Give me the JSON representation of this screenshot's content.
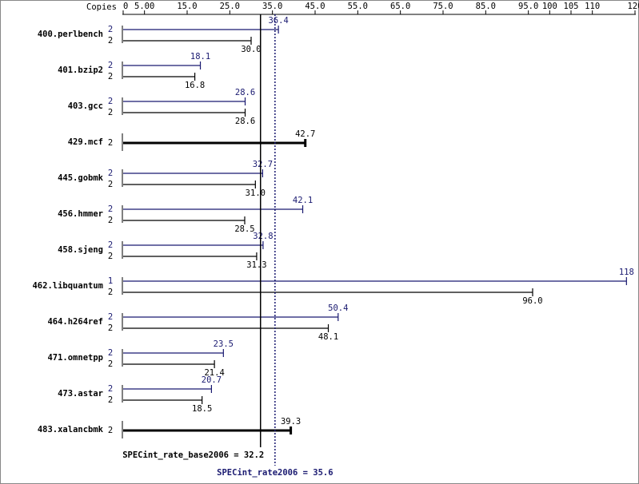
{
  "chart_data": {
    "type": "bar",
    "orientation": "horizontal",
    "copies_header": "Copies",
    "categories": [
      "400.perlbench",
      "401.bzip2",
      "403.gcc",
      "429.mcf",
      "445.gobmk",
      "456.hmmer",
      "458.sjeng",
      "462.libquantum",
      "464.h264ref",
      "471.omnetpp",
      "473.astar",
      "483.xalancbmk"
    ],
    "series": [
      {
        "color": "#191970",
        "copies": [
          2,
          2,
          2,
          null,
          2,
          2,
          2,
          1,
          2,
          2,
          2,
          null
        ],
        "values": [
          36.4,
          18.1,
          28.6,
          null,
          32.7,
          42.1,
          32.8,
          118,
          50.4,
          23.5,
          20.7,
          null
        ],
        "value_labels": [
          "36.4",
          "18.1",
          "28.6",
          null,
          "32.7",
          "42.1",
          "32.8",
          "118",
          "50.4",
          "23.5",
          "20.7",
          null
        ]
      },
      {
        "color": "#000000",
        "copies": [
          2,
          2,
          2,
          2,
          2,
          2,
          2,
          2,
          2,
          2,
          2,
          2
        ],
        "values": [
          30.0,
          16.8,
          28.6,
          42.7,
          31.0,
          28.5,
          31.3,
          96.0,
          48.1,
          21.4,
          18.5,
          39.3
        ],
        "value_labels": [
          "30.0",
          "16.8",
          "28.6",
          "42.7",
          "31.0",
          "28.5",
          "31.3",
          "96.0",
          "48.1",
          "21.4",
          "18.5",
          "39.3"
        ]
      }
    ],
    "xlim": [
      0,
      120
    ],
    "xticks": [
      0,
      {
        "value": 5,
        "label": "5.00"
      },
      {
        "value": 15,
        "label": "15.0"
      },
      {
        "value": 25,
        "label": "25.0"
      },
      {
        "value": 35,
        "label": "35.0"
      },
      {
        "value": 45,
        "label": "45.0"
      },
      {
        "value": 55,
        "label": "55.0"
      },
      {
        "value": 65,
        "label": "65.0"
      },
      {
        "value": 75,
        "label": "75.0"
      },
      {
        "value": 85,
        "label": "85.0"
      },
      {
        "value": 95,
        "label": "95.0"
      },
      100,
      105,
      110,
      120
    ],
    "reference_lines": [
      {
        "label": "SPECint_rate_base2006 = 32.2",
        "value": 32.2,
        "color": "#000000",
        "style": "solid"
      },
      {
        "label": "SPECint_rate2006 = 35.6",
        "value": 35.6,
        "color": "#191970",
        "style": "dotted"
      }
    ]
  }
}
